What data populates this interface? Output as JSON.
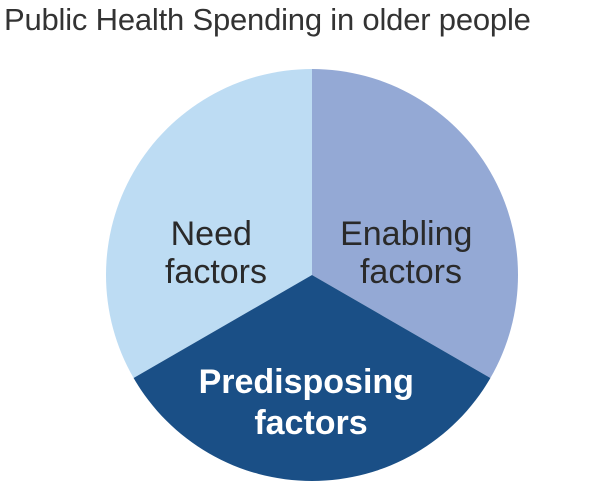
{
  "title": "Public Health Spending in older people",
  "segments": [
    {
      "id": "need",
      "lines": [
        "Need",
        "factors"
      ],
      "color": "#bddcf3",
      "text_color": "#2a2a2a",
      "bold": false
    },
    {
      "id": "enabling",
      "lines": [
        "Enabling",
        "factors"
      ],
      "color": "#94a9d5",
      "text_color": "#2a2a2a",
      "bold": false
    },
    {
      "id": "predisposing",
      "lines": [
        "Predisposing",
        "factors"
      ],
      "color": "#1a4f86",
      "text_color": "#ffffff",
      "bold": true
    }
  ]
}
